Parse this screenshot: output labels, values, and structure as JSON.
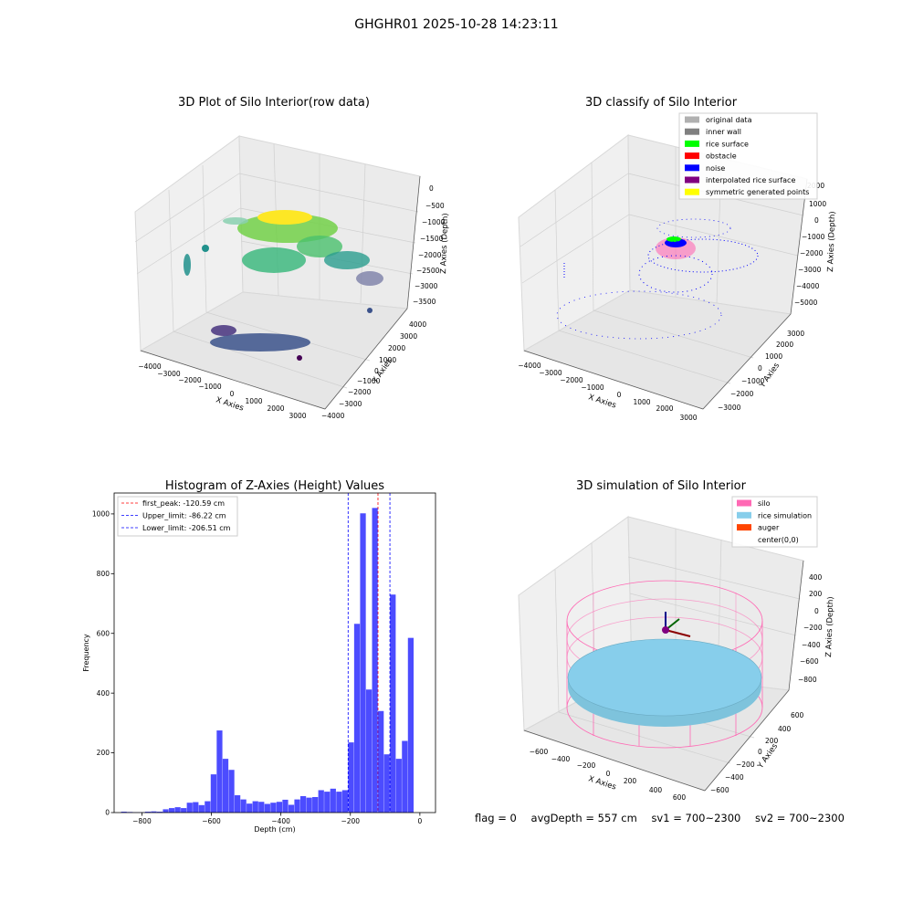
{
  "figure_title": "GHGHR01 2025-10-28 14:23:11",
  "panels": {
    "raw": {
      "title": "3D Plot of Silo Interior(row data)",
      "xlabel": "X Axies",
      "ylabel": "Y Axies",
      "zlabel": "Z Axies (Depth)",
      "xticks": [
        "−4000",
        "−3000",
        "−2000",
        "−1000",
        "0",
        "1000",
        "2000",
        "3000"
      ],
      "yticks": [
        "4000",
        "3000",
        "2000",
        "1000",
        "0",
        "−1000",
        "−2000",
        "−3000",
        "−4000"
      ],
      "zticks": [
        "0",
        "−500",
        "−1000",
        "−1500",
        "−2000",
        "−2500",
        "−3000",
        "−3500"
      ]
    },
    "classify": {
      "title": "3D classify of Silo Interior",
      "xlabel": "X Axies",
      "ylabel": "Y Axies",
      "zlabel": "Z Axies (Depth)",
      "xticks": [
        "−4000",
        "−3000",
        "−2000",
        "−1000",
        "0",
        "1000",
        "2000",
        "3000"
      ],
      "yticks": [
        "3000",
        "2000",
        "1000",
        "0",
        "−1000",
        "−2000",
        "−3000"
      ],
      "zticks": [
        "2000",
        "1000",
        "0",
        "−1000",
        "−2000",
        "−3000",
        "−4000",
        "−5000"
      ],
      "legend": [
        {
          "label": "original data",
          "color": "#b0b0b0"
        },
        {
          "label": "inner wall",
          "color": "#808080"
        },
        {
          "label": "rice surface",
          "color": "#00ff00"
        },
        {
          "label": "obstacle",
          "color": "#ff0000"
        },
        {
          "label": "noise",
          "color": "#0000ff"
        },
        {
          "label": "interpolated rice surface",
          "color": "#800080"
        },
        {
          "label": "symmetric generated points",
          "color": "#ffff00"
        }
      ]
    },
    "simulation": {
      "title": "3D simulation of Silo Interior",
      "xlabel": "X Axies",
      "ylabel": "Y Axies",
      "zlabel": "Z Axies (Depth)",
      "xticks": [
        "−600",
        "−400",
        "−200",
        "0",
        "200",
        "400",
        "600"
      ],
      "yticks": [
        "600",
        "400",
        "200",
        "0",
        "−200",
        "−400",
        "−600"
      ],
      "zticks": [
        "400",
        "200",
        "0",
        "−200",
        "−400",
        "−600",
        "−800"
      ],
      "legend": [
        {
          "label": "silo",
          "color": "#ff69b4"
        },
        {
          "label": "rice simulation",
          "color": "#87ceeb"
        },
        {
          "label": "auger",
          "color": "#ff4500"
        },
        {
          "label": "center(0,0)",
          "color": ""
        }
      ]
    }
  },
  "status": {
    "flag": "flag = 0",
    "avg_depth": "avgDepth = 557 cm",
    "sv1": "sv1 = 700~2300",
    "sv2": "sv2 = 700~2300"
  },
  "chart_data": {
    "type": "bar",
    "title": "Histogram of Z-Axies (Height) Values",
    "xlabel": "Depth (cm)",
    "ylabel": "Frequency",
    "xlim": [
      -880,
      45
    ],
    "ylim": [
      0,
      1070
    ],
    "xticks": [
      -800,
      -600,
      -400,
      -200,
      0
    ],
    "yticks": [
      0,
      200,
      400,
      600,
      800,
      1000
    ],
    "bar_color": "#0000ff",
    "bin_width": 17.2,
    "bins_start": [
      -860.0,
      -842.8,
      -825.6,
      -808.4,
      -791.2,
      -774.0,
      -756.8,
      -739.6,
      -722.4,
      -705.2,
      -688.0,
      -670.8,
      -653.6,
      -636.4,
      -619.2,
      -602.0,
      -584.8,
      -567.6,
      -550.4,
      -533.2,
      -516.0,
      -498.8,
      -481.6,
      -464.4,
      -447.2,
      -430.0,
      -412.8,
      -395.6,
      -378.4,
      -361.2,
      -344.0,
      -326.8,
      -309.6,
      -292.4,
      -275.2,
      -258.0,
      -240.8,
      -223.6,
      -206.4,
      -189.2,
      -172.0,
      -154.8,
      -137.6,
      -120.4,
      -103.2,
      -86.0,
      -68.8,
      -51.6,
      -34.4,
      -17.2
    ],
    "counts": [
      3,
      2,
      1,
      1,
      3,
      4,
      3,
      11,
      15,
      18,
      15,
      33,
      35,
      25,
      38,
      128,
      275,
      180,
      143,
      58,
      44,
      30,
      38,
      36,
      29,
      33,
      36,
      43,
      26,
      44,
      55,
      50,
      52,
      75,
      70,
      80,
      70,
      75,
      235,
      632,
      1002,
      412,
      1020,
      340,
      195,
      730,
      180,
      240,
      585,
      0
    ],
    "vlines": [
      {
        "label": "first_peak: -120.59 cm",
        "x": -120.59,
        "color": "#ff0000"
      },
      {
        "label": "Upper_limit: -86.22 cm",
        "x": -86.22,
        "color": "#0000ff"
      },
      {
        "label": "Lower_limit: -206.51 cm",
        "x": -206.51,
        "color": "#0000ff"
      }
    ],
    "grid": false,
    "legend_position": "top-left"
  }
}
